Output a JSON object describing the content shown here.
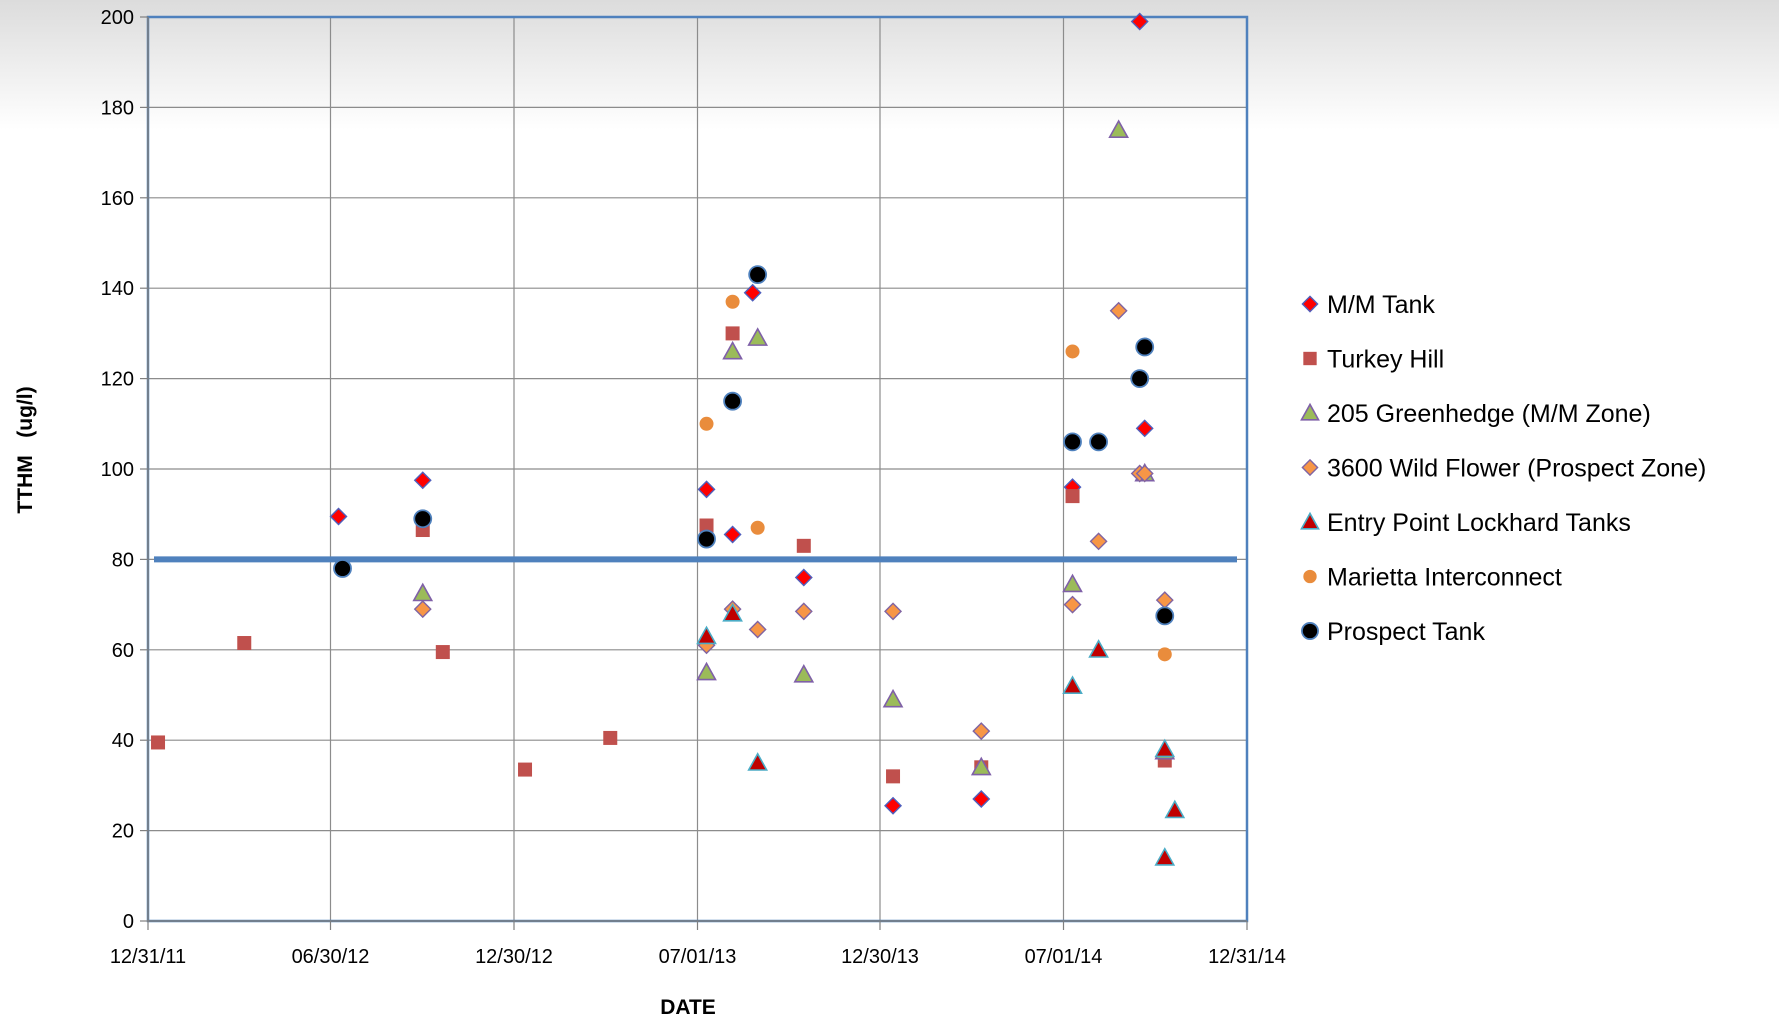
{
  "chart_data": {
    "type": "scatter",
    "xlabel": "DATE",
    "ylabel": "TTHM   (ug/l)",
    "x_ticks": [
      "12/31/11",
      "06/30/12",
      "12/30/12",
      "07/01/13",
      "12/30/13",
      "07/01/14",
      "12/31/14"
    ],
    "x_range": [
      "2011-12-31",
      "2014-12-31"
    ],
    "y_ticks": [
      0,
      20,
      40,
      60,
      80,
      100,
      120,
      140,
      160,
      180,
      200
    ],
    "ylim": [
      0,
      200
    ],
    "grid": true,
    "legend_position": "right",
    "reference_line": {
      "y": 80,
      "color": "#4f81bd"
    },
    "series": [
      {
        "name": "M/M Tank",
        "marker": "diamond",
        "color": "#ff0000",
        "edge": "#4f5fbd",
        "points": [
          {
            "x": "2012-07-08",
            "y": 89.5
          },
          {
            "x": "2012-09-30",
            "y": 97.5
          },
          {
            "x": "2013-07-10",
            "y": 95.5
          },
          {
            "x": "2013-08-05",
            "y": 85.5
          },
          {
            "x": "2013-08-25",
            "y": 139
          },
          {
            "x": "2013-10-15",
            "y": 76
          },
          {
            "x": "2014-01-12",
            "y": 25.5
          },
          {
            "x": "2014-04-10",
            "y": 27
          },
          {
            "x": "2014-07-10",
            "y": 96
          },
          {
            "x": "2014-09-15",
            "y": 199
          },
          {
            "x": "2014-09-20",
            "y": 109
          }
        ]
      },
      {
        "name": "Turkey Hill",
        "marker": "square",
        "color": "#c0504d",
        "edge": "#c0504d",
        "points": [
          {
            "x": "2012-01-10",
            "y": 39.5
          },
          {
            "x": "2012-04-05",
            "y": 61.5
          },
          {
            "x": "2012-09-30",
            "y": 86.5
          },
          {
            "x": "2012-10-20",
            "y": 59.5
          },
          {
            "x": "2013-01-10",
            "y": 33.5
          },
          {
            "x": "2013-04-05",
            "y": 40.5
          },
          {
            "x": "2013-07-10",
            "y": 87.5
          },
          {
            "x": "2013-08-05",
            "y": 130
          },
          {
            "x": "2013-10-15",
            "y": 83
          },
          {
            "x": "2014-01-12",
            "y": 32
          },
          {
            "x": "2014-04-10",
            "y": 34
          },
          {
            "x": "2014-07-10",
            "y": 94
          },
          {
            "x": "2014-10-10",
            "y": 35.5
          }
        ]
      },
      {
        "name": "205 Greenhedge (M/M Zone)",
        "marker": "triangle",
        "color": "#9bbb59",
        "edge": "#7f60a8",
        "points": [
          {
            "x": "2012-09-30",
            "y": 72.5
          },
          {
            "x": "2013-07-10",
            "y": 55
          },
          {
            "x": "2013-08-05",
            "y": 126
          },
          {
            "x": "2013-08-30",
            "y": 129
          },
          {
            "x": "2013-10-15",
            "y": 54.5
          },
          {
            "x": "2014-01-12",
            "y": 49
          },
          {
            "x": "2014-04-10",
            "y": 34
          },
          {
            "x": "2014-07-10",
            "y": 74.5
          },
          {
            "x": "2014-08-25",
            "y": 175
          },
          {
            "x": "2014-09-20",
            "y": 99
          },
          {
            "x": "2014-10-10",
            "y": 37.5
          }
        ]
      },
      {
        "name": "3600 Wild Flower (Prospect Zone)",
        "marker": "diamond",
        "color": "#f79646",
        "edge": "#8064a2",
        "points": [
          {
            "x": "2012-09-30",
            "y": 69
          },
          {
            "x": "2013-07-10",
            "y": 61
          },
          {
            "x": "2013-08-05",
            "y": 69
          },
          {
            "x": "2013-08-30",
            "y": 64.5
          },
          {
            "x": "2013-10-15",
            "y": 68.5
          },
          {
            "x": "2014-01-12",
            "y": 68.5
          },
          {
            "x": "2014-04-10",
            "y": 42
          },
          {
            "x": "2014-07-10",
            "y": 70
          },
          {
            "x": "2014-08-05",
            "y": 84
          },
          {
            "x": "2014-08-25",
            "y": 135
          },
          {
            "x": "2014-09-15",
            "y": 99
          },
          {
            "x": "2014-09-20",
            "y": 99
          },
          {
            "x": "2014-10-10",
            "y": 71
          }
        ]
      },
      {
        "name": "Entry Point Lockhard Tanks",
        "marker": "triangle",
        "color": "#c00000",
        "edge": "#4bacc6",
        "points": [
          {
            "x": "2013-07-10",
            "y": 63
          },
          {
            "x": "2013-08-05",
            "y": 68
          },
          {
            "x": "2013-08-30",
            "y": 35
          },
          {
            "x": "2014-07-10",
            "y": 52
          },
          {
            "x": "2014-08-05",
            "y": 60
          },
          {
            "x": "2014-10-10",
            "y": 14
          },
          {
            "x": "2014-10-10",
            "y": 38
          },
          {
            "x": "2014-10-20",
            "y": 24.5
          }
        ]
      },
      {
        "name": "Marietta Interconnect",
        "marker": "circle-small",
        "color": "#e98c3c",
        "edge": "#e98c3c",
        "points": [
          {
            "x": "2013-07-10",
            "y": 110
          },
          {
            "x": "2013-08-05",
            "y": 137
          },
          {
            "x": "2013-08-30",
            "y": 87
          },
          {
            "x": "2014-07-10",
            "y": 126
          },
          {
            "x": "2014-10-10",
            "y": 59
          }
        ]
      },
      {
        "name": "Prospect Tank",
        "marker": "circle",
        "color": "#000000",
        "edge": "#4f81bd",
        "points": [
          {
            "x": "2012-07-12",
            "y": 78
          },
          {
            "x": "2012-09-30",
            "y": 89
          },
          {
            "x": "2013-07-10",
            "y": 84.5
          },
          {
            "x": "2013-08-05",
            "y": 115
          },
          {
            "x": "2013-08-30",
            "y": 143
          },
          {
            "x": "2014-07-10",
            "y": 106
          },
          {
            "x": "2014-08-05",
            "y": 106
          },
          {
            "x": "2014-09-15",
            "y": 120
          },
          {
            "x": "2014-09-20",
            "y": 127
          },
          {
            "x": "2014-10-10",
            "y": 67.5
          }
        ]
      }
    ]
  }
}
